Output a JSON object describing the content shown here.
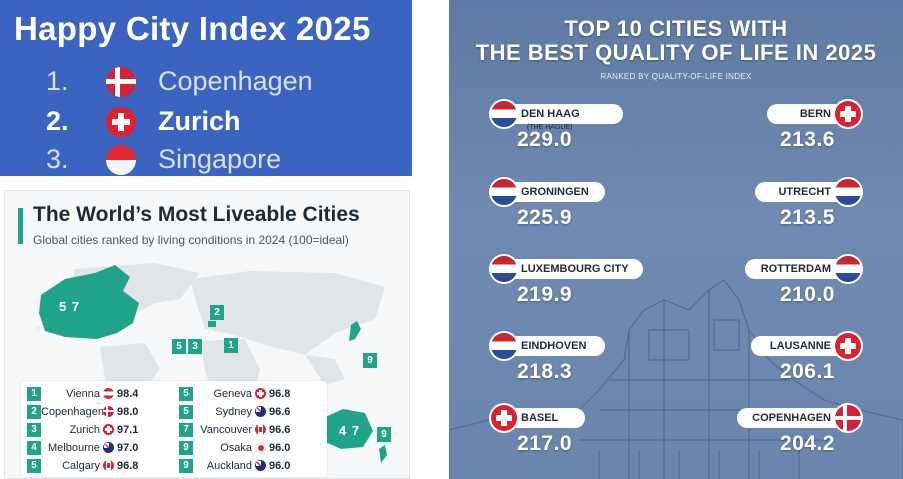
{
  "happy_index": {
    "title": "Happy City Index 2025",
    "rows": [
      {
        "rank": "1.",
        "city": "Copenhagen",
        "flag": "denmark-flag-icon"
      },
      {
        "rank": "2.",
        "city": "Zurich",
        "flag": "switzerland-flag-icon"
      },
      {
        "rank": "3.",
        "city": "Singapore",
        "flag": "singapore-flag-icon"
      }
    ]
  },
  "liveable": {
    "title": "The World’s Most Liveable Cities",
    "subtitle": "Global cities ranked by living conditions in 2024 (100=ideal)",
    "accent": "#21a38e",
    "map_markers": {
      "canada": "5 7",
      "europe_top": "2",
      "europe_mid_a": "5",
      "europe_mid_b": "3",
      "europe_mid_c": "1",
      "japan": "9",
      "australia": "4 7",
      "new_zealand": "9"
    },
    "legend": [
      {
        "num": "1",
        "city": "Vienna",
        "flag": "austria-flag-icon",
        "score": "98.4"
      },
      {
        "num": "2",
        "city": "Copenhagen",
        "flag": "denmark-flag-icon",
        "score": "98.0"
      },
      {
        "num": "3",
        "city": "Zurich",
        "flag": "switzerland-flag-icon",
        "score": "97.1"
      },
      {
        "num": "4",
        "city": "Melbourne",
        "flag": "australia-flag-icon",
        "score": "97.0"
      },
      {
        "num": "5",
        "city": "Calgary",
        "flag": "canada-flag-icon",
        "score": "96.8"
      },
      {
        "num": "5",
        "city": "Geneva",
        "flag": "switzerland-flag-icon",
        "score": "96.8"
      },
      {
        "num": "5",
        "city": "Sydney",
        "flag": "australia-flag-icon",
        "score": "96.6"
      },
      {
        "num": "7",
        "city": "Vancouver",
        "flag": "canada-flag-icon",
        "score": "96.6"
      },
      {
        "num": "9",
        "city": "Osaka",
        "flag": "japan-flag-icon",
        "score": "96.0"
      },
      {
        "num": "9",
        "city": "Auckland",
        "flag": "new-zealand-flag-icon",
        "score": "96.0"
      }
    ]
  },
  "quality": {
    "title_line1": "TOP 10 CITIES WITH",
    "title_line2": "THE BEST QUALITY OF LIFE IN 2025",
    "subtitle": "RANKED BY QUALITY-OF-LIFE INDEX",
    "left": [
      {
        "city": "DEN HAAG",
        "note": "(THE HAGUE)",
        "score": "229.0",
        "flag": "netherlands-flag-icon"
      },
      {
        "city": "GRONINGEN",
        "score": "225.9",
        "flag": "netherlands-flag-icon"
      },
      {
        "city": "LUXEMBOURG CITY",
        "score": "219.9",
        "flag": "netherlands-flag-icon"
      },
      {
        "city": "EINDHOVEN",
        "score": "218.3",
        "flag": "netherlands-flag-icon"
      },
      {
        "city": "BASEL",
        "score": "217.0",
        "flag": "switzerland-flag-icon"
      }
    ],
    "right": [
      {
        "city": "BERN",
        "score": "213.6",
        "flag": "switzerland-flag-icon"
      },
      {
        "city": "UTRECHT",
        "score": "213.5",
        "flag": "netherlands-flag-icon"
      },
      {
        "city": "ROTTERDAM",
        "score": "210.0",
        "flag": "netherlands-flag-icon"
      },
      {
        "city": "LAUSANNE",
        "score": "206.1",
        "flag": "switzerland-flag-icon"
      },
      {
        "city": "COPENHAGEN",
        "score": "204.2",
        "flag": "denmark-flag-icon"
      }
    ]
  }
}
